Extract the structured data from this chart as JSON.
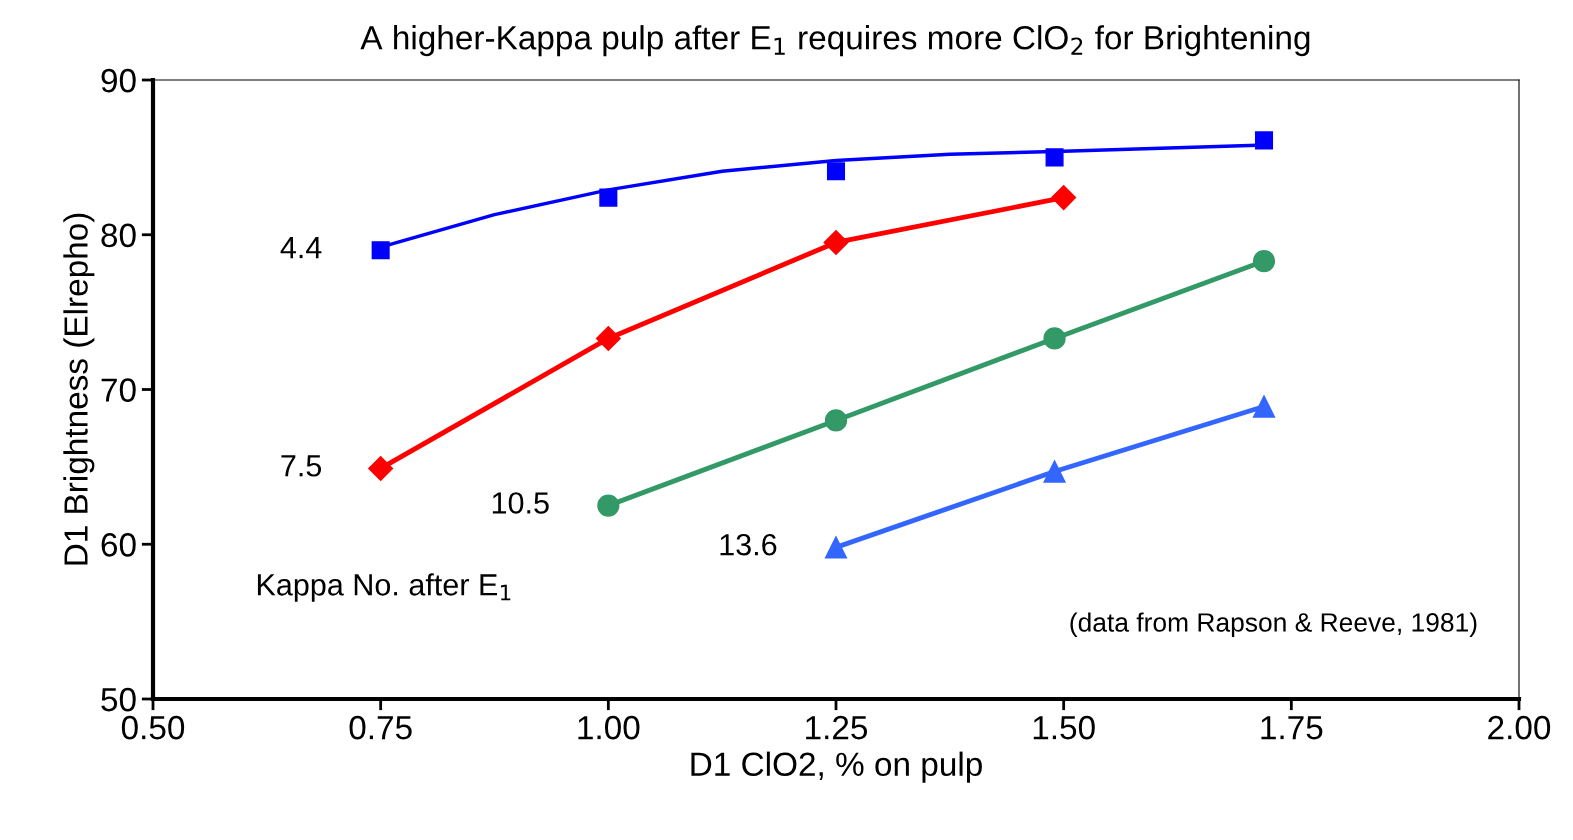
{
  "chart_data": {
    "type": "line",
    "title": "A higher-Kappa pulp after E$_{1}$ requires more ClO$_{2}$ for Brightening",
    "xlabel": "D1 ClO2, % on pulp",
    "ylabel": "D1 Brightness (Elrepho)",
    "series": [
      {
        "name": "4.4",
        "type": "scatter",
        "color": "#0000ff",
        "marker": "square",
        "x": [
          0.75,
          1.0,
          1.25,
          1.49,
          1.72
        ],
        "values": [
          79.0,
          82.4,
          84.1,
          85.0,
          86.1
        ]
      },
      {
        "type": "line",
        "color": "#0000ff",
        "marker": "none",
        "x": [
          0.75,
          0.875,
          1.0,
          1.125,
          1.25,
          1.375,
          1.5,
          1.72
        ],
        "values": [
          79.2,
          81.3,
          82.9,
          84.1,
          84.8,
          85.2,
          85.4,
          85.8
        ]
      },
      {
        "name": "7.5",
        "color": "#ff0000",
        "marker": "diamond",
        "x": [
          0.75,
          1.0,
          1.25,
          1.5
        ],
        "values": [
          64.9,
          73.3,
          79.5,
          82.4
        ]
      },
      {
        "name": "10.5",
        "color": "#339966",
        "marker": "circle",
        "x": [
          1.0,
          1.25,
          1.49,
          1.72
        ],
        "values": [
          62.5,
          68.0,
          73.3,
          78.3
        ]
      },
      {
        "name": "13.6",
        "color": "#3366ff",
        "marker": "triangle",
        "x": [
          1.25,
          1.49,
          1.72
        ],
        "values": [
          59.8,
          64.7,
          68.9
        ]
      }
    ],
    "xlim": [
      0.5,
      2.0
    ],
    "xticks": [
      {
        "value": 0.5,
        "label": "0.50"
      },
      {
        "value": 0.75,
        "label": "0.75"
      },
      {
        "value": 1.0,
        "label": "1.00"
      },
      {
        "value": 1.25,
        "label": "1.25"
      },
      {
        "value": 1.5,
        "label": "1.50"
      },
      {
        "value": 1.75,
        "label": "1.75"
      },
      {
        "value": 2.0,
        "label": "2.00"
      }
    ],
    "ylim": [
      50,
      90
    ],
    "yticks": [
      50,
      60,
      70,
      80,
      90
    ],
    "grid": false,
    "legend": false,
    "annotations": [
      "Kappa No. after E$_{1}$",
      "(data from Rapson & Reeve, 1981)"
    ]
  }
}
